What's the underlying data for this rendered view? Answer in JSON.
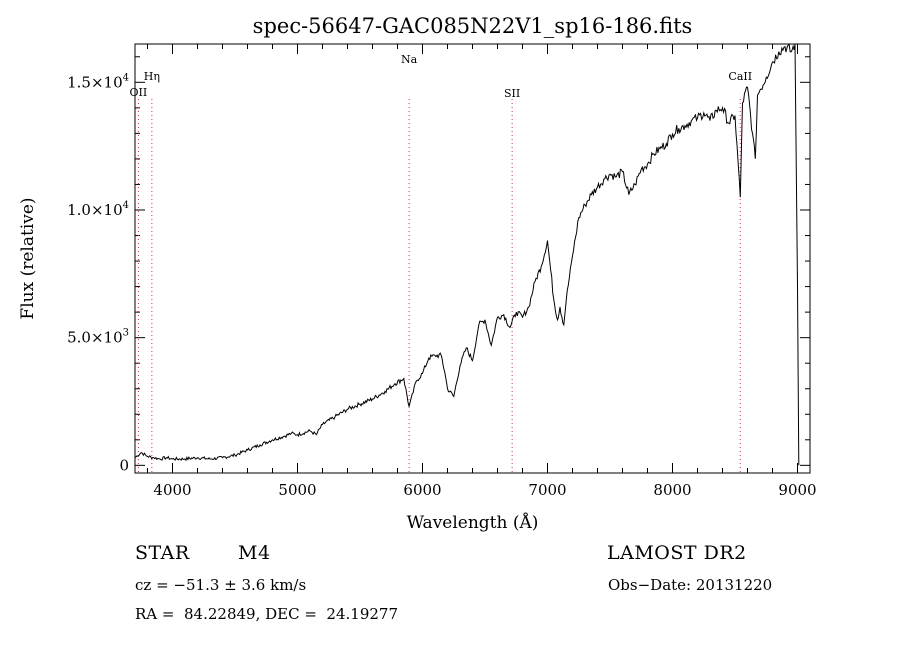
{
  "chart_data": {
    "type": "line",
    "title": "spec-56647-GAC085N22V1_sp16-186.fits",
    "xlabel": "Wavelength (Å)",
    "ylabel": "Flux (relative)",
    "xlim": [
      3700,
      9100
    ],
    "ylim": [
      -300,
      16500
    ],
    "xticks": [
      4000,
      5000,
      6000,
      7000,
      8000,
      9000
    ],
    "xtick_labels": [
      "4000",
      "5000",
      "6000",
      "7000",
      "8000",
      "9000"
    ],
    "yticks": [
      0,
      5000,
      10000,
      15000
    ],
    "ytick_labels": [
      {
        "mantissa": "0",
        "exp": ""
      },
      {
        "mantissa": "5.0×10",
        "exp": "3"
      },
      {
        "mantissa": "1.0×10",
        "exp": "4"
      },
      {
        "mantissa": "1.5×10",
        "exp": "4"
      }
    ],
    "grid": false,
    "line_color": "#000000",
    "marker_color": "#cc3333",
    "lines": [
      {
        "label": "OII",
        "x": 3727
      },
      {
        "label": "Hη",
        "x": 3835
      },
      {
        "label": "Na",
        "x": 5893
      },
      {
        "label": "SII",
        "x": 6717
      },
      {
        "label": "CaII",
        "x": 8542
      }
    ],
    "series": [
      {
        "x": [
          3700,
          3750,
          3800,
          3850,
          3900,
          3950,
          4000,
          4100,
          4200,
          4300,
          4400,
          4500,
          4600,
          4700,
          4800,
          4900,
          4950,
          5000,
          5100,
          5150,
          5200,
          5300,
          5400,
          5500,
          5600,
          5700,
          5780,
          5850,
          5893,
          5950,
          6000,
          6050,
          6100,
          6150,
          6180,
          6200,
          6250,
          6300,
          6350,
          6400,
          6450,
          6500,
          6550,
          6600,
          6650,
          6700,
          6750,
          6800,
          6850,
          6900,
          6950,
          7000,
          7050,
          7080,
          7100,
          7130,
          7150,
          7200,
          7250,
          7300,
          7350,
          7400,
          7450,
          7500,
          7550,
          7600,
          7650,
          7700,
          7750,
          7800,
          7850,
          7900,
          7950,
          8000,
          8050,
          8100,
          8150,
          8200,
          8250,
          8300,
          8350,
          8400,
          8450,
          8500,
          8542,
          8560,
          8600,
          8640,
          8662,
          8680,
          8700,
          8750,
          8800,
          8850,
          8900,
          8950,
          8980,
          9000,
          9010
        ],
        "y": [
          300,
          500,
          350,
          300,
          250,
          300,
          250,
          250,
          300,
          250,
          300,
          400,
          600,
          800,
          1000,
          1150,
          1250,
          1200,
          1350,
          1200,
          1600,
          1900,
          2200,
          2400,
          2600,
          2900,
          3200,
          3400,
          2300,
          3300,
          3600,
          4200,
          4300,
          4300,
          3600,
          3000,
          2700,
          3900,
          4600,
          4100,
          5500,
          5700,
          4700,
          5800,
          5900,
          5400,
          6000,
          5800,
          6200,
          7200,
          7800,
          8800,
          6500,
          5700,
          6200,
          5500,
          6500,
          8200,
          9700,
          10200,
          10600,
          10900,
          11200,
          11400,
          11300,
          11500,
          10600,
          11000,
          11600,
          11800,
          12200,
          12400,
          12600,
          13000,
          13200,
          13300,
          13500,
          13600,
          13800,
          13500,
          13900,
          14000,
          13400,
          13700,
          10500,
          14200,
          14800,
          13000,
          12000,
          14500,
          14700,
          15200,
          15800,
          16200,
          16400,
          16200,
          16500,
          7000,
          0
        ]
      }
    ]
  },
  "footer": {
    "object_class": "STAR",
    "subclass": "M4",
    "survey": "LAMOST DR2",
    "velocity": "cz = −51.3 ± 3.6 km/s",
    "obs_date": "Obs−Date: 20131220",
    "coords": "RA =  84.22849, DEC =  24.19277"
  }
}
